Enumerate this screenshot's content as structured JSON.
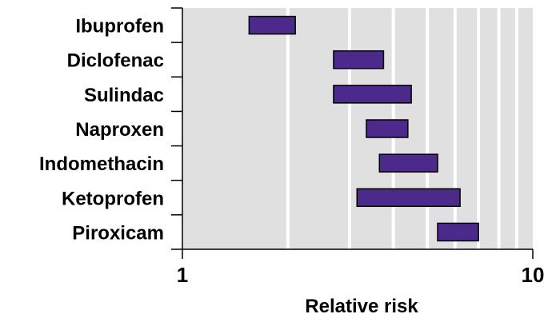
{
  "chart_data": {
    "type": "bar",
    "orientation": "horizontal-range",
    "xscale": "log",
    "xlim": [
      1,
      10
    ],
    "xlabel": "Relative risk",
    "xticks": [
      "1",
      "10"
    ],
    "categories": [
      "Ibuprofen",
      "Diclofenac",
      "Sulindac",
      "Naproxen",
      "Indomethacin",
      "Ketoprofen",
      "Piroxicam"
    ],
    "ranges": [
      [
        1.55,
        2.1
      ],
      [
        2.7,
        3.75
      ],
      [
        2.7,
        4.5
      ],
      [
        3.35,
        4.4
      ],
      [
        3.65,
        5.35
      ],
      [
        3.15,
        6.2
      ],
      [
        5.35,
        7.0
      ]
    ],
    "grid": true,
    "colors": {
      "bar_fill": "#4b2a8c",
      "bar_stroke": "#000000",
      "plot_bg": "#e0e0e0",
      "gridline": "#ffffff"
    }
  }
}
